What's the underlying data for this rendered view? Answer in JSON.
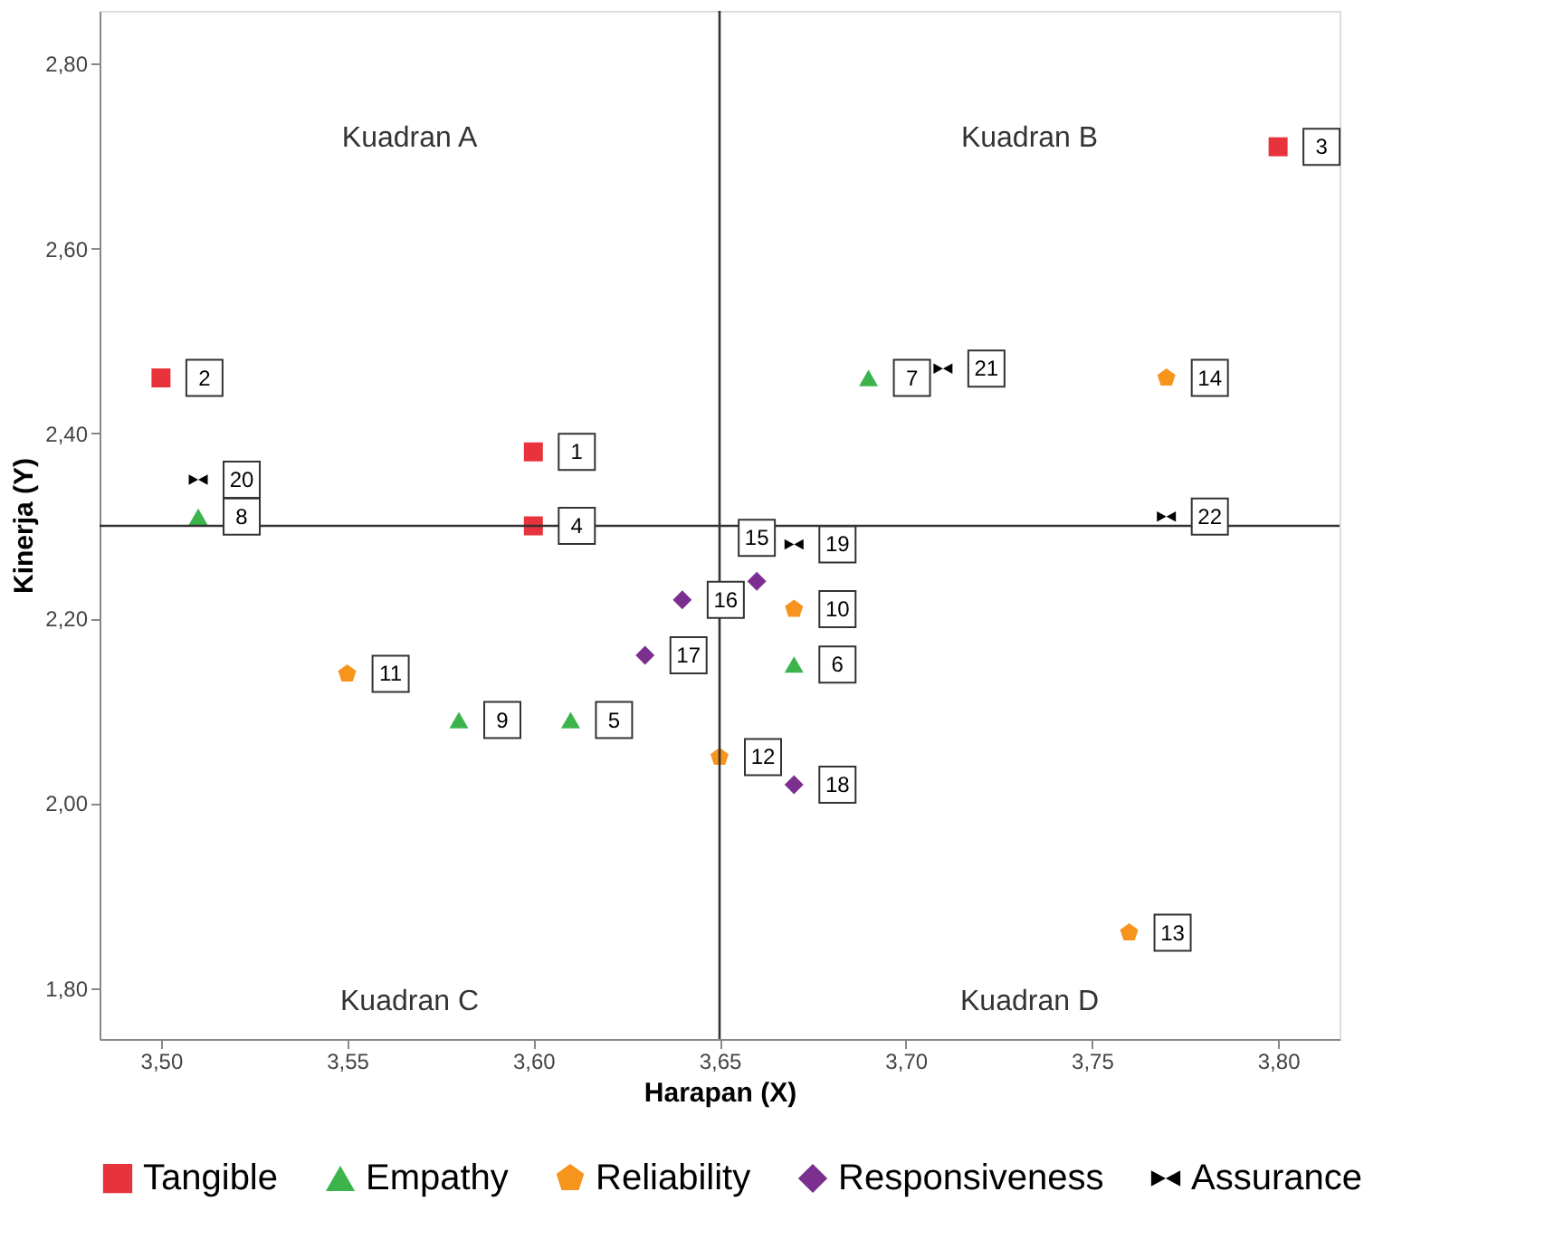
{
  "chart_data": {
    "type": "scatter",
    "xlabel": "Harapan (X)",
    "ylabel": "Kinerja (Y)",
    "xlim": [
      3.4835,
      3.8165
    ],
    "ylim": [
      1.745,
      2.857
    ],
    "xticks": [
      {
        "value": 3.5,
        "label": "3,50"
      },
      {
        "value": 3.55,
        "label": "3,55"
      },
      {
        "value": 3.6,
        "label": "3,60"
      },
      {
        "value": 3.65,
        "label": "3,65"
      },
      {
        "value": 3.7,
        "label": "3,70"
      },
      {
        "value": 3.75,
        "label": "3,75"
      },
      {
        "value": 3.8,
        "label": "3,80"
      }
    ],
    "yticks": [
      {
        "value": 1.8,
        "label": "1,80"
      },
      {
        "value": 2.0,
        "label": "2,00"
      },
      {
        "value": 2.2,
        "label": "2,20"
      },
      {
        "value": 2.4,
        "label": "2,40"
      },
      {
        "value": 2.6,
        "label": "2,60"
      },
      {
        "value": 2.8,
        "label": "2,80"
      }
    ],
    "grid": false,
    "legend": "bottom",
    "series": [
      {
        "name": "Tangible",
        "color": "#e8323c",
        "marker": "square",
        "x": [
          3.6,
          3.5,
          3.8,
          3.6
        ],
        "values": [
          2.38,
          2.46,
          2.71,
          2.3
        ]
      },
      {
        "name": "Empathy",
        "color": "#3cb44b",
        "marker": "triangle",
        "x": [
          3.61,
          3.67,
          3.69,
          3.51,
          3.58
        ],
        "values": [
          2.09,
          2.15,
          2.46,
          2.31,
          2.09
        ]
      },
      {
        "name": "Reliability",
        "color": "#f7941d",
        "x": [
          3.67,
          3.55,
          3.65,
          3.76,
          3.77
        ],
        "values": [
          2.21,
          2.14,
          2.05,
          1.86,
          2.46
        ]
      },
      {
        "name": "Responsiveness",
        "color": "#7b2f8e",
        "marker": "diamond",
        "x": [
          3.66,
          3.64,
          3.63,
          3.67
        ],
        "values": [
          2.24,
          2.22,
          2.16,
          2.02
        ]
      },
      {
        "name": "Assurance",
        "color": "#000000",
        "x": [
          3.67,
          3.51,
          3.71,
          3.77
        ],
        "values": [
          2.28,
          2.35,
          2.47,
          2.31
        ]
      }
    ],
    "ref_lines": [
      {
        "axis": "x",
        "value": 3.65,
        "color": "#333333"
      },
      {
        "axis": "y",
        "value": 2.3,
        "color": "#333333"
      }
    ],
    "annotations": [
      "Kuadran A",
      "Kuadran B",
      "Kuadran C",
      "Kuadran D",
      {
        "text": "1",
        "x": 3.6,
        "y": 2.38
      },
      {
        "text": "2",
        "x": 3.5,
        "y": 2.46
      },
      {
        "text": "3",
        "x": 3.8,
        "y": 2.71
      },
      {
        "text": "4",
        "x": 3.6,
        "y": 2.3
      },
      {
        "text": "5",
        "x": 3.61,
        "y": 2.09
      },
      {
        "text": "6",
        "x": 3.67,
        "y": 2.15
      },
      {
        "text": "7",
        "x": 3.69,
        "y": 2.46
      },
      {
        "text": "8",
        "x": 3.51,
        "y": 2.31
      },
      {
        "text": "9",
        "x": 3.58,
        "y": 2.09
      },
      {
        "text": "10",
        "x": 3.67,
        "y": 2.21
      },
      {
        "text": "11",
        "x": 3.55,
        "y": 2.14
      },
      {
        "text": "12",
        "x": 3.65,
        "y": 2.05
      },
      {
        "text": "13",
        "x": 3.76,
        "y": 1.86
      },
      {
        "text": "14",
        "x": 3.77,
        "y": 2.46
      },
      {
        "text": "15",
        "x": 3.66,
        "y": 2.24
      },
      {
        "text": "16",
        "x": 3.64,
        "y": 2.22
      },
      {
        "text": "17",
        "x": 3.63,
        "y": 2.16
      },
      {
        "text": "18",
        "x": 3.67,
        "y": 2.02
      },
      {
        "text": "19",
        "x": 3.67,
        "y": 2.28
      },
      {
        "text": "20",
        "x": 3.51,
        "y": 2.35
      },
      {
        "text": "21",
        "x": 3.71,
        "y": 2.47
      },
      {
        "text": "22",
        "x": 3.77,
        "y": 2.31
      }
    ]
  }
}
